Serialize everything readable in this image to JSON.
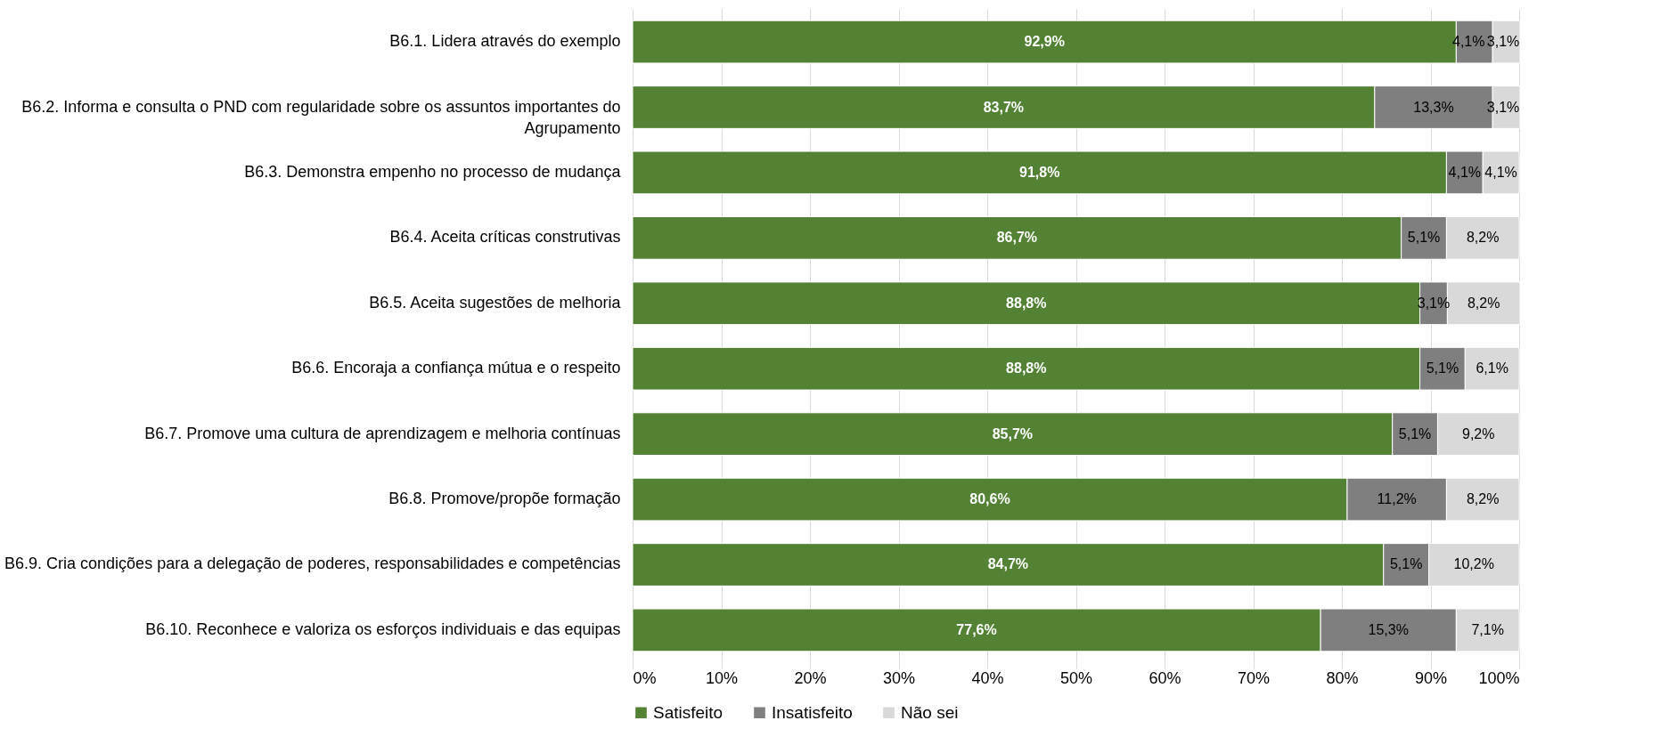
{
  "chart_data": {
    "type": "bar",
    "orientation": "horizontal",
    "stacked": true,
    "categories": [
      "B6.1. Lidera através do exemplo",
      "B6.2. Informa e consulta o PND com regularidade sobre os assuntos importantes do Agrupamento",
      "B6.3. Demonstra empenho no processo de mudança",
      "B6.4. Aceita críticas construtivas",
      "B6.5. Aceita sugestões de melhoria",
      "B6.6. Encoraja a confiança mútua e o respeito",
      "B6.7. Promove uma cultura de aprendizagem e melhoria contínuas",
      "B6.8. Promove/propõe formação",
      "B6.9. Cria condições para a delegação de poderes, responsabilidades e competências",
      "B6.10. Reconhece e valoriza os esforços individuais e das equipas"
    ],
    "series": [
      {
        "name": "Satisfeito",
        "color": "#548235",
        "values": [
          92.9,
          83.7,
          91.8,
          86.7,
          88.8,
          88.8,
          85.7,
          80.6,
          84.7,
          77.6
        ],
        "value_labels": [
          "92,9%",
          "83,7%",
          "91,8%",
          "86,7%",
          "88,8%",
          "88,8%",
          "85,7%",
          "80,6%",
          "84,7%",
          "77,6%"
        ]
      },
      {
        "name": "Insatisfeito",
        "color": "#7f7f7f",
        "values": [
          4.1,
          13.3,
          4.1,
          5.1,
          3.1,
          5.1,
          5.1,
          11.2,
          5.1,
          15.3
        ],
        "value_labels": [
          "4,1%",
          "13,3%",
          "4,1%",
          "5,1%",
          "3,1%",
          "5,1%",
          "5,1%",
          "11,2%",
          "5,1%",
          "15,3%"
        ]
      },
      {
        "name": "Não sei",
        "color": "#d9d9d9",
        "values": [
          3.1,
          3.1,
          4.1,
          8.2,
          8.2,
          6.1,
          9.2,
          8.2,
          10.2,
          7.1
        ],
        "value_labels": [
          "3,1%",
          "3,1%",
          "4,1%",
          "8,2%",
          "8,2%",
          "6,1%",
          "9,2%",
          "8,2%",
          "10,2%",
          "7,1%"
        ]
      }
    ],
    "xlim": [
      0,
      100
    ],
    "xticks": [
      {
        "value": 0,
        "label": "0%"
      },
      {
        "value": 10,
        "label": "10%"
      },
      {
        "value": 20,
        "label": "20%"
      },
      {
        "value": 30,
        "label": "30%"
      },
      {
        "value": 40,
        "label": "40%"
      },
      {
        "value": 50,
        "label": "50%"
      },
      {
        "value": 60,
        "label": "60%"
      },
      {
        "value": 70,
        "label": "70%"
      },
      {
        "value": 80,
        "label": "80%"
      },
      {
        "value": 90,
        "label": "90%"
      },
      {
        "value": 100,
        "label": "100%"
      }
    ],
    "grid": "x",
    "legend": "bottom"
  }
}
